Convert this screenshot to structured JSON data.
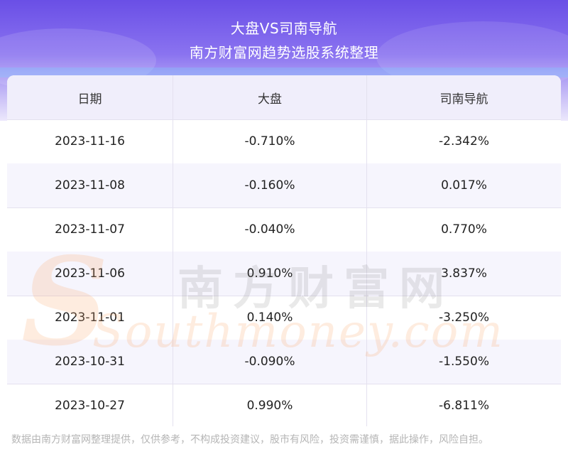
{
  "header": {
    "title": "大盘VS司南导航",
    "subtitle": "南方财富网趋势选股系统整理"
  },
  "table": {
    "columns": [
      "日期",
      "大盘",
      "司南导航"
    ],
    "rows": [
      [
        "2023-11-16",
        "-0.710%",
        "-2.342%"
      ],
      [
        "2023-11-08",
        "-0.160%",
        "0.017%"
      ],
      [
        "2023-11-07",
        "-0.040%",
        "0.770%"
      ],
      [
        "2023-11-06",
        "0.910%",
        "3.837%"
      ],
      [
        "2023-11-01",
        "0.140%",
        "-3.250%"
      ],
      [
        "2023-10-31",
        "-0.090%",
        "-1.550%"
      ],
      [
        "2023-10-27",
        "0.990%",
        "-6.811%"
      ]
    ]
  },
  "watermark": {
    "cn": "南方财富网",
    "en": "Southmoney.com"
  },
  "footer": {
    "disclaimer": "数据由南方财富网整理提供，仅供参考，不构成投资建议，股市有风险，投资需谨慎，据此操作，风险自担。"
  },
  "colors": {
    "header_start": "#6a4fe6",
    "header_end": "#ece8fc",
    "row_alt": "#f6f5fd",
    "head_row": "#f0eefb"
  }
}
